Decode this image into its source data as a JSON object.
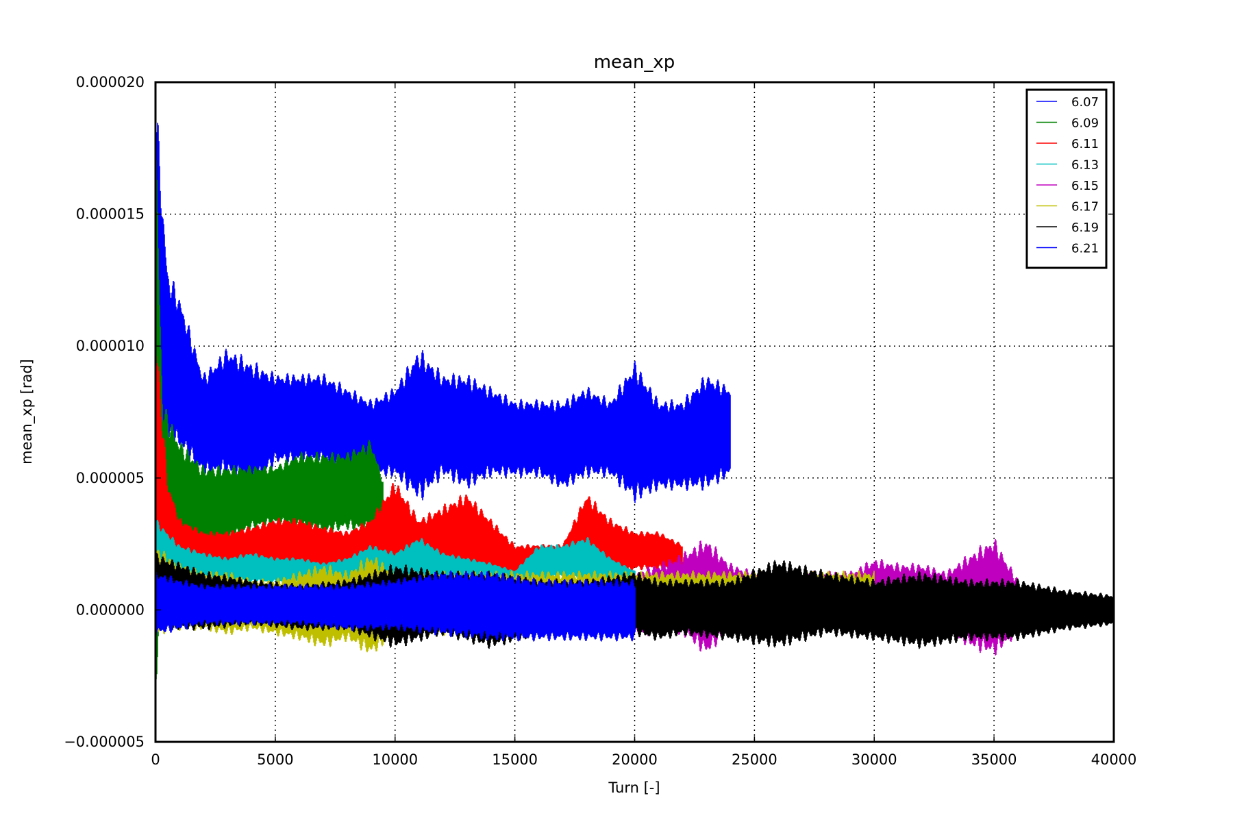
{
  "chart_data": {
    "type": "line",
    "title": "mean_xp",
    "xlabel": "Turn [-]",
    "ylabel": "mean_xp [rad]",
    "xlim": [
      0,
      40000
    ],
    "ylim": [
      -5e-06,
      2e-05
    ],
    "xticks": [
      0,
      5000,
      10000,
      15000,
      20000,
      25000,
      30000,
      35000,
      40000
    ],
    "xtick_labels": [
      "0",
      "5000",
      "10000",
      "15000",
      "20000",
      "25000",
      "30000",
      "35000",
      "40000"
    ],
    "yticks": [
      -5e-06,
      0,
      5e-06,
      1e-05,
      1.5e-05,
      2e-05
    ],
    "ytick_labels": [
      "−0.000005",
      "0.000000",
      "0.000005",
      "0.000010",
      "0.000015",
      "0.000020"
    ],
    "grid": true,
    "legend_position": "top-right",
    "series": [
      {
        "name": "6.07",
        "color": "#0000ff",
        "x": [
          0,
          500,
          1000,
          2000,
          3000,
          4000,
          5000,
          6000,
          7000,
          8000,
          9000,
          10000,
          11000,
          12000,
          13000,
          14000,
          15000,
          16000,
          17000,
          18000,
          19000,
          20000,
          21000,
          22000,
          23000,
          24000
        ],
        "low": [
          3e-06,
          6e-06,
          6e-06,
          5e-06,
          5e-06,
          4.5e-06,
          5.5e-06,
          5.5e-06,
          5.5e-06,
          5e-06,
          5e-06,
          5e-06,
          4e-06,
          5e-06,
          4.5e-06,
          5e-06,
          5e-06,
          5e-06,
          4.5e-06,
          5e-06,
          5e-06,
          4e-06,
          4.5e-06,
          4.5e-06,
          4.5e-06,
          5e-06
        ],
        "high": [
          2e-05,
          1.3e-05,
          1.2e-05,
          9e-06,
          1e-05,
          9.5e-06,
          9e-06,
          9e-06,
          9e-06,
          8.5e-06,
          8e-06,
          8.5e-06,
          1e-05,
          9e-06,
          9e-06,
          8.5e-06,
          8e-06,
          8e-06,
          8e-06,
          8.5e-06,
          8e-06,
          9.5e-06,
          8e-06,
          8e-06,
          9e-06,
          8.5e-06
        ]
      },
      {
        "name": "6.09",
        "color": "#008000",
        "x": [
          0,
          300,
          1000,
          2000,
          3000,
          4000,
          5000,
          6000,
          7000,
          8000,
          9000,
          9500
        ],
        "low": [
          -4e-06,
          1e-06,
          2e-06,
          2e-06,
          2.5e-06,
          3e-06,
          3.2e-06,
          3e-06,
          2.8e-06,
          3e-06,
          2.8e-06,
          3e-06
        ],
        "high": [
          1.9e-05,
          8e-06,
          6.5e-06,
          5.5e-06,
          5.5e-06,
          5.5e-06,
          5.5e-06,
          6e-06,
          6e-06,
          6e-06,
          6.5e-06,
          5e-06
        ]
      },
      {
        "name": "6.11",
        "color": "#ff0000",
        "x": [
          0,
          500,
          1000,
          2000,
          3000,
          4000,
          5000,
          6000,
          7000,
          8000,
          9000,
          10000,
          11000,
          12000,
          13000,
          14000,
          15000,
          16000,
          17000,
          18000,
          19000,
          20000,
          21000,
          22000
        ],
        "low": [
          -1e-06,
          1e-06,
          1.5e-06,
          1.5e-06,
          1.5e-06,
          1.5e-06,
          1.5e-06,
          1.5e-06,
          1.5e-06,
          1.5e-06,
          1.5e-06,
          1e-06,
          1e-06,
          1e-06,
          1e-06,
          1e-06,
          1e-06,
          1.5e-06,
          1.5e-06,
          1e-06,
          1e-06,
          1.5e-06,
          1.5e-06,
          1.5e-06
        ],
        "high": [
          1.1e-05,
          5e-06,
          3.5e-06,
          3e-06,
          3e-06,
          3.2e-06,
          3.5e-06,
          3.5e-06,
          3.2e-06,
          3e-06,
          3.5e-06,
          5e-06,
          3.5e-06,
          4e-06,
          4.5e-06,
          3.5e-06,
          2.5e-06,
          2.5e-06,
          2.5e-06,
          4.5e-06,
          3.5e-06,
          3e-06,
          3e-06,
          2.5e-06
        ]
      },
      {
        "name": "6.13",
        "color": "#00bfbf",
        "x": [
          0,
          1000,
          2000,
          3000,
          4000,
          5000,
          6000,
          7000,
          8000,
          9000,
          10000,
          11000,
          12000,
          13000,
          14000,
          15000,
          16000,
          17000,
          18000,
          19000,
          20000
        ],
        "low": [
          1e-06,
          1e-06,
          1e-06,
          1e-06,
          1e-06,
          1e-06,
          1e-06,
          1e-06,
          1e-06,
          1e-06,
          1e-06,
          1e-06,
          1e-06,
          1e-06,
          1e-06,
          1e-06,
          1e-06,
          1.2e-06,
          1e-06,
          1e-06,
          1e-06
        ],
        "high": [
          3.5e-06,
          2.5e-06,
          2.2e-06,
          2e-06,
          2.2e-06,
          2e-06,
          2e-06,
          1.8e-06,
          2e-06,
          2.5e-06,
          2.2e-06,
          2.8e-06,
          2.2e-06,
          2e-06,
          1.8e-06,
          1.5e-06,
          2.5e-06,
          2.5e-06,
          2.8e-06,
          2e-06,
          1.5e-06
        ]
      },
      {
        "name": "6.15",
        "color": "#bf00bf",
        "x": [
          20000,
          21000,
          22000,
          23000,
          24000,
          25000,
          26000,
          27000,
          28000,
          29000,
          30000,
          31000,
          32000,
          33000,
          34000,
          35000,
          36000
        ],
        "low": [
          -1e-06,
          -1e-06,
          -1e-06,
          -1.8e-06,
          -8e-07,
          -8e-07,
          -1e-06,
          -1e-06,
          -8e-07,
          -8e-07,
          -1e-06,
          -8e-07,
          -1e-06,
          -8e-07,
          -1.5e-06,
          -1.8e-06,
          -1e-06
        ],
        "high": [
          1.5e-06,
          1.8e-06,
          2.2e-06,
          2.8e-06,
          1.8e-06,
          1.5e-06,
          1.5e-06,
          1.5e-06,
          1.5e-06,
          1.5e-06,
          2e-06,
          1.8e-06,
          1.8e-06,
          1.5e-06,
          2.2e-06,
          2.8e-06,
          1.2e-06
        ]
      },
      {
        "name": "6.17",
        "color": "#bfbf00",
        "x": [
          0,
          1000,
          2000,
          3000,
          4000,
          5000,
          6000,
          7000,
          8000,
          9000,
          10000,
          12000,
          14000,
          16000,
          18000,
          20000,
          22000,
          24000,
          26000,
          28000,
          30000
        ],
        "low": [
          -1e-06,
          -8e-07,
          -8e-07,
          -1e-06,
          -8e-07,
          -1e-06,
          -1.2e-06,
          -1.5e-06,
          -1.2e-06,
          -1.8e-06,
          -1e-06,
          -1e-06,
          -8e-07,
          -8e-07,
          -8e-07,
          -8e-07,
          -8e-07,
          -8e-07,
          -8e-07,
          -8e-07,
          -8e-07
        ],
        "high": [
          2.5e-06,
          1.8e-06,
          1.5e-06,
          1.5e-06,
          1.2e-06,
          1.2e-06,
          1.5e-06,
          1.8e-06,
          1.5e-06,
          2.2e-06,
          1.5e-06,
          1.5e-06,
          1.5e-06,
          1.5e-06,
          1.5e-06,
          1.5e-06,
          1.5e-06,
          1.5e-06,
          1.5e-06,
          1.5e-06,
          1.5e-06
        ]
      },
      {
        "name": "6.19",
        "color": "#000000",
        "x": [
          0,
          2000,
          4000,
          6000,
          8000,
          10000,
          12000,
          14000,
          16000,
          18000,
          20000,
          21000,
          22000,
          24000,
          26000,
          28000,
          30000,
          32000,
          34000,
          36000,
          38000,
          40000
        ],
        "low": [
          -8e-07,
          -8e-07,
          -6e-07,
          -8e-07,
          -8e-07,
          -1.5e-06,
          -1e-06,
          -1.5e-06,
          -1e-06,
          -1e-06,
          -1e-06,
          -1.2e-06,
          -1e-06,
          -1.2e-06,
          -1.5e-06,
          -1e-06,
          -1.2e-06,
          -1.5e-06,
          -1.2e-06,
          -1.2e-06,
          -8e-07,
          -6e-07
        ],
        "high": [
          2.2e-06,
          1.5e-06,
          1.2e-06,
          1e-06,
          1.2e-06,
          1.8e-06,
          1.5e-06,
          1.5e-06,
          1.2e-06,
          1.2e-06,
          1.5e-06,
          1.2e-06,
          1.2e-06,
          1.2e-06,
          2e-06,
          1.5e-06,
          1.2e-06,
          1.5e-06,
          1.2e-06,
          1.2e-06,
          8e-07,
          6e-07
        ]
      },
      {
        "name": "6.21",
        "color": "#0000ff",
        "x": [
          0,
          1000,
          2000,
          4000,
          6000,
          8000,
          10000,
          12000,
          14000,
          16000,
          18000,
          20000
        ],
        "low": [
          -1e-06,
          -8e-07,
          -6e-07,
          -6e-07,
          -6e-07,
          -8e-07,
          -8e-07,
          -1e-06,
          -1.2e-06,
          -1.2e-06,
          -1.2e-06,
          -1.2e-06
        ],
        "high": [
          1.5e-06,
          1.2e-06,
          1e-06,
          1e-06,
          1e-06,
          1e-06,
          1.2e-06,
          1.5e-06,
          1.5e-06,
          1.2e-06,
          1.2e-06,
          1.2e-06
        ]
      }
    ]
  }
}
